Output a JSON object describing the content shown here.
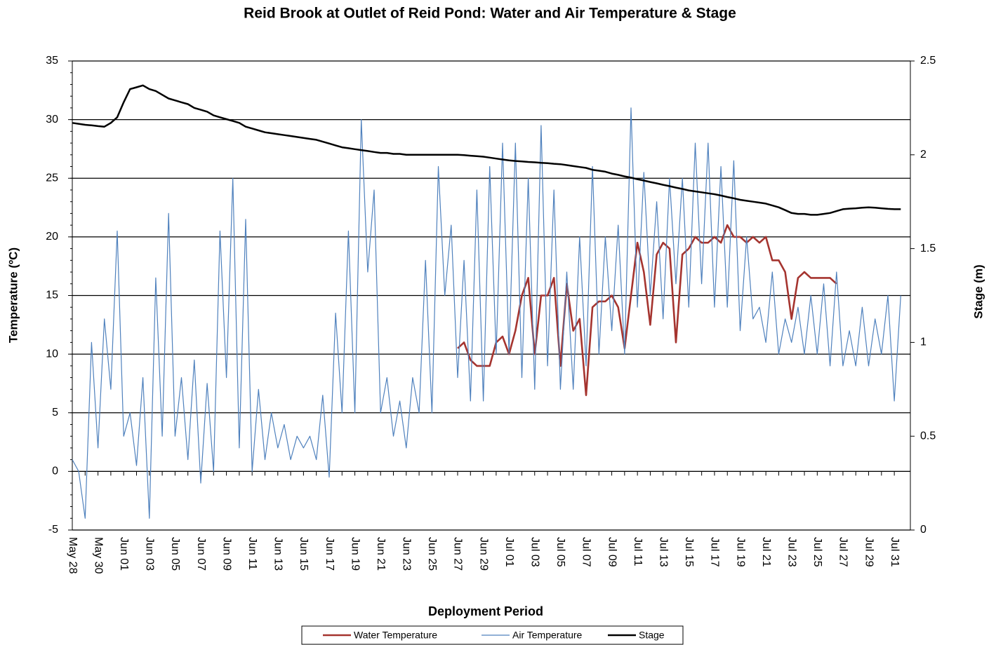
{
  "chart_data": {
    "type": "line",
    "title": "Reid Brook at Outlet of Reid Pond: Water and Air  Temperature & Stage",
    "x_label": "Deployment Period",
    "y_label": "Temperature (ºC)",
    "y2_label": "Stage (m)",
    "x": [
      "May 28",
      null,
      null,
      null,
      "May 30",
      null,
      null,
      null,
      "Jun 01",
      null,
      null,
      null,
      "Jun 03",
      null,
      null,
      null,
      "Jun 05",
      null,
      null,
      null,
      "Jun 07",
      null,
      null,
      null,
      "Jun 09",
      null,
      null,
      null,
      "Jun 11",
      null,
      null,
      null,
      "Jun 13",
      null,
      null,
      null,
      "Jun 15",
      null,
      null,
      null,
      "Jun 17",
      null,
      null,
      null,
      "Jun 19",
      null,
      null,
      null,
      "Jun 21",
      null,
      null,
      null,
      "Jun 23",
      null,
      null,
      null,
      "Jun 25",
      null,
      null,
      null,
      "Jun 27",
      null,
      null,
      null,
      "Jun 29",
      null,
      null,
      null,
      "Jul 01",
      null,
      null,
      null,
      "Jul 03",
      null,
      null,
      null,
      "Jul 05",
      null,
      null,
      null,
      "Jul 07",
      null,
      null,
      null,
      "Jul 09",
      null,
      null,
      null,
      "Jul 11",
      null,
      null,
      null,
      "Jul 13",
      null,
      null,
      null,
      "Jul 15",
      null,
      null,
      null,
      "Jul 17",
      null,
      null,
      null,
      "Jul 19",
      null,
      null,
      null,
      "Jul 21",
      null,
      null,
      null,
      "Jul 23",
      null,
      null,
      null,
      "Jul 25",
      null,
      null,
      null,
      "Jul 27",
      null,
      null,
      null,
      "Jul 29",
      null,
      null,
      null,
      "Jul 31",
      null
    ],
    "series": [
      {
        "name": "Water Temperature",
        "color": "#a5342f",
        "axis": "y",
        "values": [
          null,
          null,
          null,
          null,
          null,
          null,
          null,
          null,
          null,
          null,
          null,
          null,
          null,
          null,
          null,
          null,
          null,
          null,
          null,
          null,
          null,
          null,
          null,
          null,
          null,
          null,
          null,
          null,
          null,
          null,
          null,
          null,
          null,
          null,
          null,
          null,
          null,
          null,
          null,
          null,
          null,
          null,
          null,
          null,
          null,
          null,
          null,
          null,
          null,
          null,
          null,
          null,
          null,
          null,
          null,
          null,
          null,
          null,
          null,
          null,
          10.5,
          11,
          9.5,
          9,
          9,
          9,
          11,
          11.5,
          10,
          12,
          15,
          16.5,
          10,
          15,
          15,
          16.5,
          9,
          16,
          12,
          13,
          6.5,
          14,
          14.5,
          14.5,
          15,
          14,
          10.5,
          15,
          19.5,
          17,
          12.5,
          18.5,
          19.5,
          19,
          11,
          18.5,
          19,
          20,
          19.5,
          19.5,
          20,
          19.5,
          21,
          20,
          20,
          19.5,
          20,
          19.5,
          20,
          18,
          18,
          17,
          13,
          16.5,
          17,
          16.5,
          16.5,
          16.5,
          16.5,
          16,
          null,
          null,
          null,
          null,
          null,
          null,
          null,
          null,
          null,
          null
        ]
      },
      {
        "name": "Air Temperature",
        "color": "#4f81bd",
        "axis": "y",
        "values": [
          1,
          0,
          -4,
          11,
          2,
          13,
          7,
          20.5,
          3,
          5,
          0.5,
          8,
          -4,
          16.5,
          3,
          22,
          3,
          8,
          1,
          9.5,
          -1,
          7.5,
          0,
          20.5,
          8,
          25,
          2,
          21.5,
          0,
          7,
          1,
          5,
          2,
          4,
          1,
          3,
          2,
          3,
          1,
          6.5,
          -0.5,
          13.5,
          5,
          20.5,
          5,
          30,
          17,
          24,
          5,
          8,
          3,
          6,
          2,
          8,
          5,
          18,
          5,
          26,
          15,
          21,
          8,
          18,
          6,
          24,
          6,
          26,
          10,
          28,
          10,
          28,
          8,
          25,
          7,
          29.5,
          9,
          24,
          7,
          17,
          7,
          20,
          9,
          26,
          10,
          20,
          12,
          21,
          10,
          31,
          14,
          25.5,
          15,
          23,
          13,
          25,
          16,
          25,
          14,
          28,
          16,
          28,
          14,
          26,
          14,
          26.5,
          12,
          20,
          13,
          14,
          11,
          17,
          10,
          13,
          11,
          14,
          10,
          15,
          10,
          16,
          9,
          17,
          9,
          12,
          9,
          14,
          9,
          13,
          10,
          15,
          6,
          15
        ]
      },
      {
        "name": "Stage",
        "color": "#000000",
        "axis": "y2",
        "values": [
          2.17,
          2.165,
          2.16,
          2.157,
          2.153,
          2.15,
          2.17,
          2.2,
          2.28,
          2.35,
          2.36,
          2.37,
          2.35,
          2.34,
          2.32,
          2.3,
          2.29,
          2.28,
          2.27,
          2.25,
          2.24,
          2.23,
          2.21,
          2.2,
          2.19,
          2.18,
          2.17,
          2.15,
          2.14,
          2.13,
          2.12,
          2.115,
          2.11,
          2.105,
          2.1,
          2.095,
          2.09,
          2.085,
          2.08,
          2.07,
          2.06,
          2.05,
          2.04,
          2.035,
          2.03,
          2.025,
          2.02,
          2.015,
          2.01,
          2.01,
          2.005,
          2.005,
          2.0,
          2.0,
          2.0,
          2.0,
          2.0,
          2.0,
          2.0,
          2.0,
          2.0,
          1.998,
          1.995,
          1.993,
          1.99,
          1.985,
          1.98,
          1.975,
          1.97,
          1.967,
          1.965,
          1.962,
          1.96,
          1.957,
          1.955,
          1.952,
          1.95,
          1.945,
          1.94,
          1.935,
          1.93,
          1.92,
          1.915,
          1.91,
          1.9,
          1.893,
          1.885,
          1.878,
          1.87,
          1.863,
          1.855,
          1.848,
          1.84,
          1.833,
          1.825,
          1.818,
          1.81,
          1.805,
          1.8,
          1.795,
          1.79,
          1.783,
          1.775,
          1.768,
          1.76,
          1.755,
          1.75,
          1.745,
          1.74,
          1.73,
          1.72,
          1.705,
          1.69,
          1.685,
          1.685,
          1.68,
          1.68,
          1.685,
          1.69,
          1.7,
          1.71,
          1.713,
          1.715,
          1.718,
          1.72,
          1.718,
          1.715,
          1.712,
          1.71,
          1.71
        ]
      }
    ],
    "ylim": [
      -5,
      35
    ],
    "yticks": [
      -5,
      0,
      5,
      10,
      15,
      20,
      25,
      30,
      35
    ],
    "y2lim": [
      0,
      2.5
    ],
    "y2ticks": [
      0,
      0.5,
      1,
      1.5,
      2,
      2.5
    ],
    "grid": true
  }
}
